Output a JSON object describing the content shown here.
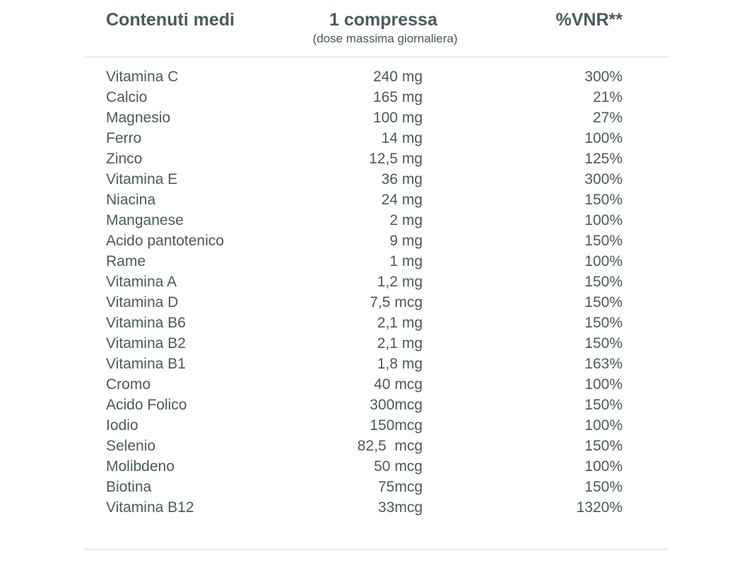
{
  "header": {
    "name_label": "Contenuti medi",
    "dose_label": "1 compressa",
    "dose_sublabel": "(dose massima giornaliera)",
    "vnr_label": "%VNR**"
  },
  "rows": [
    {
      "name": "Vitamina C",
      "dose": "240 mg",
      "vnr": "300%"
    },
    {
      "name": "Calcio",
      "dose": "165 mg",
      "vnr": "21%"
    },
    {
      "name": "Magnesio",
      "dose": "100 mg",
      "vnr": "27%"
    },
    {
      "name": "Ferro",
      "dose": "14 mg",
      "vnr": "100%"
    },
    {
      "name": "Zinco",
      "dose": "12,5 mg",
      "vnr": "125%"
    },
    {
      "name": "Vitamina E",
      "dose": "36 mg",
      "vnr": "300%"
    },
    {
      "name": "Niacina",
      "dose": "24 mg",
      "vnr": "150%"
    },
    {
      "name": "Manganese",
      "dose": "2 mg",
      "vnr": "100%"
    },
    {
      "name": "Acido pantotenico",
      "dose": "9 mg",
      "vnr": "150%"
    },
    {
      "name": "Rame",
      "dose": "1 mg",
      "vnr": "100%"
    },
    {
      "name": "Vitamina A",
      "dose": "1,2 mg",
      "vnr": "150%"
    },
    {
      "name": "Vitamina D",
      "dose": "7,5 mcg",
      "vnr": "150%"
    },
    {
      "name": "Vitamina B6",
      "dose": "2,1 mg",
      "vnr": "150%"
    },
    {
      "name": "Vitamina B2",
      "dose": "2,1 mg",
      "vnr": "150%"
    },
    {
      "name": "Vitamina B1",
      "dose": "1,8 mg",
      "vnr": "163%"
    },
    {
      "name": "Cromo",
      "dose": "40 mcg",
      "vnr": "100%"
    },
    {
      "name": "Acido Folico",
      "dose": "300mcg",
      "vnr": "150%"
    },
    {
      "name": "Iodio",
      "dose": "150mcg",
      "vnr": "100%"
    },
    {
      "name": "Selenio",
      "dose": "82,5  mcg",
      "vnr": "150%"
    },
    {
      "name": "Molibdeno",
      "dose": "50 mcg",
      "vnr": "100%"
    },
    {
      "name": "Biotina",
      "dose": "75mcg",
      "vnr": "150%"
    },
    {
      "name": "Vitamina B12",
      "dose": "33mcg",
      "vnr": "1320%"
    }
  ]
}
